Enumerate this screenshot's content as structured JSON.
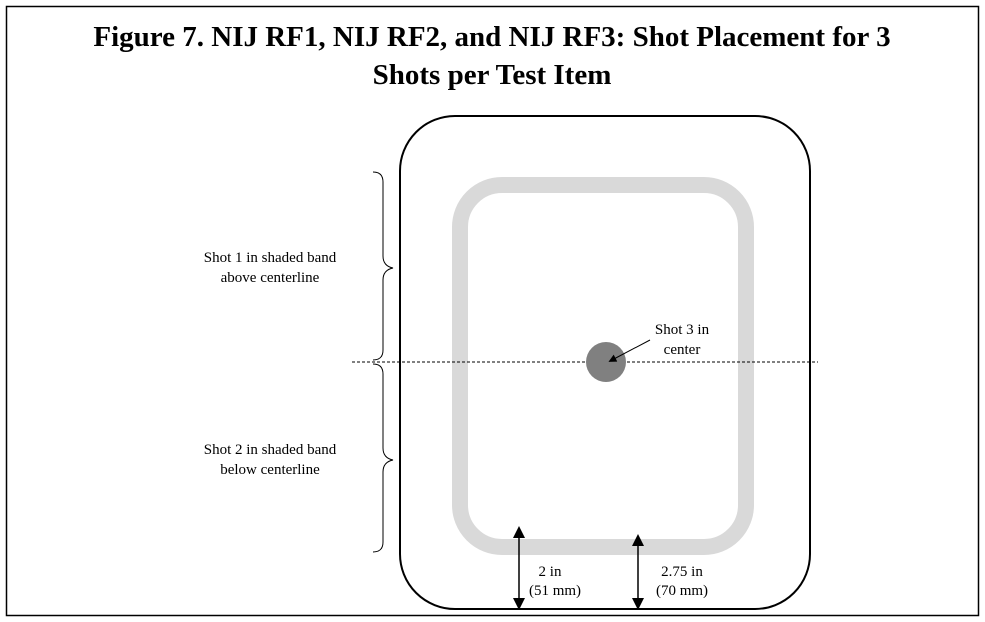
{
  "title": [
    "Figure 7. NIJ RF1, NIJ RF2, and NIJ RF3: Shot Placement for 3",
    "Shots per Test Item"
  ],
  "labels": {
    "shot1": [
      "Shot 1 in shaded band",
      "above centerline"
    ],
    "shot2": [
      "Shot 2 in shaded band",
      "below centerline"
    ],
    "shot3": [
      "Shot 3 in",
      "center"
    ],
    "dim1": [
      "2 in",
      "(51 mm)"
    ],
    "dim2": [
      "2.75 in",
      "(70 mm)"
    ]
  }
}
